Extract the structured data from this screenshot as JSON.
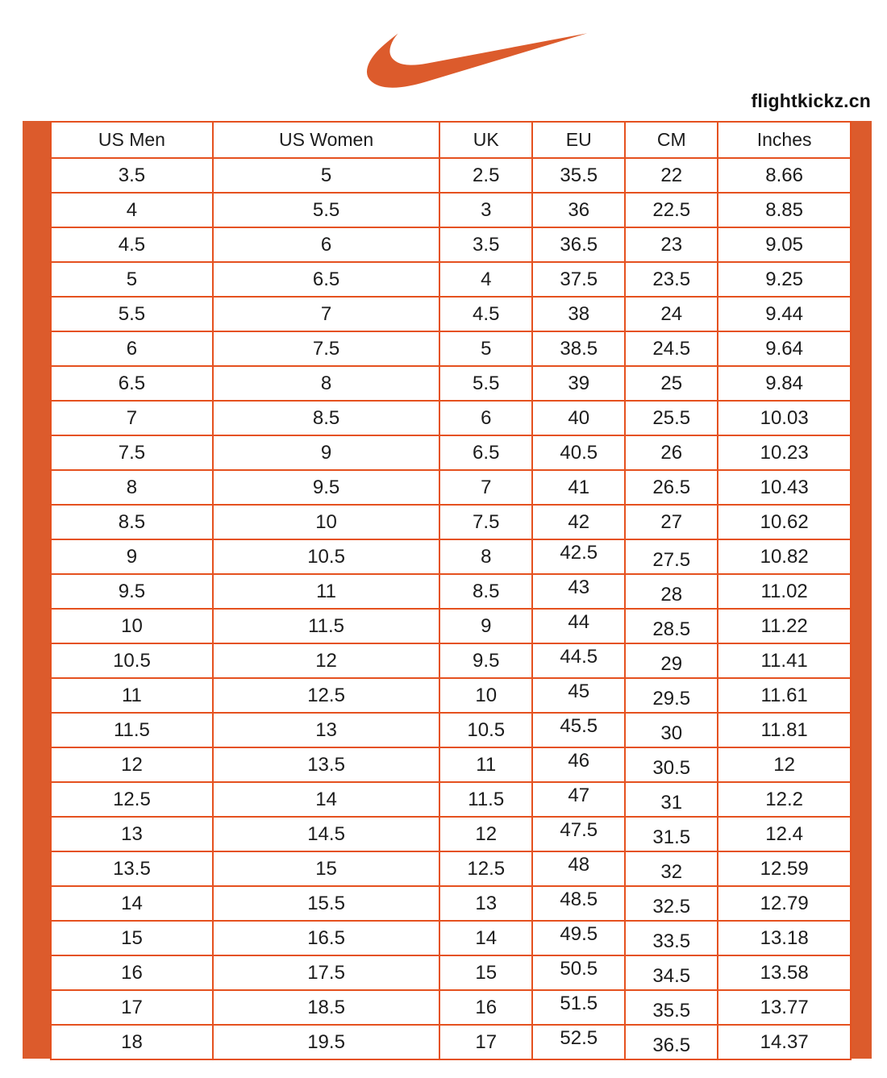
{
  "header": {
    "site_label": "flightkickz.cn"
  },
  "brand": {
    "logo_icon": "nike-swoosh",
    "logo_color": "#DC5B2C"
  },
  "colors": {
    "accent_orange": "#DC5B2C",
    "grid_orange": "#E5511F",
    "text": "#1C1C1C",
    "background": "#FFFFFF"
  },
  "chart_data": {
    "type": "table",
    "columns": [
      "US Men",
      "US Women",
      "UK",
      "EU",
      "CM",
      "Inches"
    ],
    "rows": [
      [
        "3.5",
        "5",
        "2.5",
        "35.5",
        "22",
        "8.66"
      ],
      [
        "4",
        "5.5",
        "3",
        "36",
        "22.5",
        "8.85"
      ],
      [
        "4.5",
        "6",
        "3.5",
        "36.5",
        "23",
        "9.05"
      ],
      [
        "5",
        "6.5",
        "4",
        "37.5",
        "23.5",
        "9.25"
      ],
      [
        "5.5",
        "7",
        "4.5",
        "38",
        "24",
        "9.44"
      ],
      [
        "6",
        "7.5",
        "5",
        "38.5",
        "24.5",
        "9.64"
      ],
      [
        "6.5",
        "8",
        "5.5",
        "39",
        "25",
        "9.84"
      ],
      [
        "7",
        "8.5",
        "6",
        "40",
        "25.5",
        "10.03"
      ],
      [
        "7.5",
        "9",
        "6.5",
        "40.5",
        "26",
        "10.23"
      ],
      [
        "8",
        "9.5",
        "7",
        "41",
        "26.5",
        "10.43"
      ],
      [
        "8.5",
        "10",
        "7.5",
        "42",
        "27",
        "10.62"
      ],
      [
        "9",
        "10.5",
        "8",
        "42.5",
        "27.5",
        "10.82"
      ],
      [
        "9.5",
        "11",
        "8.5",
        "43",
        "28",
        "11.02"
      ],
      [
        "10",
        "11.5",
        "9",
        "44",
        "28.5",
        "11.22"
      ],
      [
        "10.5",
        "12",
        "9.5",
        "44.5",
        "29",
        "11.41"
      ],
      [
        "11",
        "12.5",
        "10",
        "45",
        "29.5",
        "11.61"
      ],
      [
        "11.5",
        "13",
        "10.5",
        "45.5",
        "30",
        "11.81"
      ],
      [
        "12",
        "13.5",
        "11",
        "46",
        "30.5",
        "12"
      ],
      [
        "12.5",
        "14",
        "11.5",
        "47",
        "31",
        "12.2"
      ],
      [
        "13",
        "14.5",
        "12",
        "47.5",
        "31.5",
        "12.4"
      ],
      [
        "13.5",
        "15",
        "12.5",
        "48",
        "32",
        "12.59"
      ],
      [
        "14",
        "15.5",
        "13",
        "48.5",
        "32.5",
        "12.79"
      ],
      [
        "15",
        "16.5",
        "14",
        "49.5",
        "33.5",
        "13.18"
      ],
      [
        "16",
        "17.5",
        "15",
        "50.5",
        "34.5",
        "13.58"
      ],
      [
        "17",
        "18.5",
        "16",
        "51.5",
        "35.5",
        "13.77"
      ],
      [
        "18",
        "19.5",
        "17",
        "52.5",
        "36.5",
        "14.37"
      ]
    ]
  }
}
